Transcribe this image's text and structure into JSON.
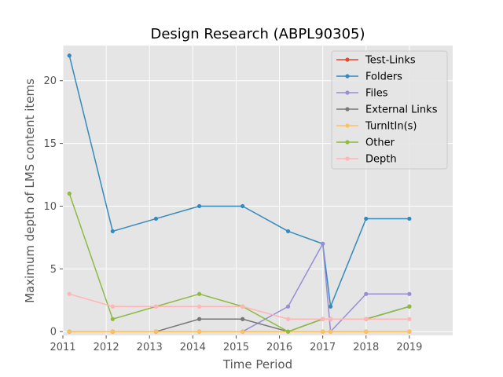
{
  "chart_data": {
    "type": "line",
    "title": "Design Research (ABPL90305)",
    "xlabel": "Time Period",
    "ylabel": "Maximum depth of LMS content items",
    "xlim": [
      2011,
      2020
    ],
    "ylim": [
      -0.3,
      22.8
    ],
    "x_ticks": [
      2011,
      2012,
      2013,
      2014,
      2015,
      2016,
      2017,
      2018,
      2019
    ],
    "y_ticks": [
      0,
      5,
      10,
      15,
      20
    ],
    "grid": true,
    "legend_position": "top-right",
    "x": [
      2011.15,
      2012.15,
      2013.15,
      2014.15,
      2015.15,
      2016.2,
      2017.0,
      2017.18,
      2018.0,
      2019.0
    ],
    "series": [
      {
        "name": "Test-Links",
        "color": "#E24A33",
        "values": [
          0,
          0,
          0,
          0,
          0,
          0,
          0,
          0,
          0,
          0
        ]
      },
      {
        "name": "Folders",
        "color": "#348ABD",
        "values": [
          22,
          8,
          9,
          10,
          10,
          8,
          7,
          2,
          9,
          9
        ]
      },
      {
        "name": "Files",
        "color": "#988ED5",
        "values": [
          0,
          0,
          0,
          0,
          0,
          2,
          7,
          0,
          3,
          3
        ]
      },
      {
        "name": "External Links",
        "color": "#777777",
        "values": [
          0,
          0,
          0,
          1,
          1,
          0,
          1,
          1,
          1,
          2
        ]
      },
      {
        "name": "TurnItIn(s)",
        "color": "#FBC15E",
        "values": [
          0,
          0,
          0,
          0,
          0,
          0,
          0,
          0,
          0,
          0
        ]
      },
      {
        "name": "Other",
        "color": "#8EBA42",
        "values": [
          11,
          1,
          2,
          3,
          2,
          0,
          1,
          1,
          1,
          2
        ]
      },
      {
        "name": "Depth",
        "color": "#FFB5B8",
        "values": [
          3,
          2,
          2,
          2,
          2,
          1,
          1,
          1,
          1,
          1
        ]
      }
    ]
  }
}
